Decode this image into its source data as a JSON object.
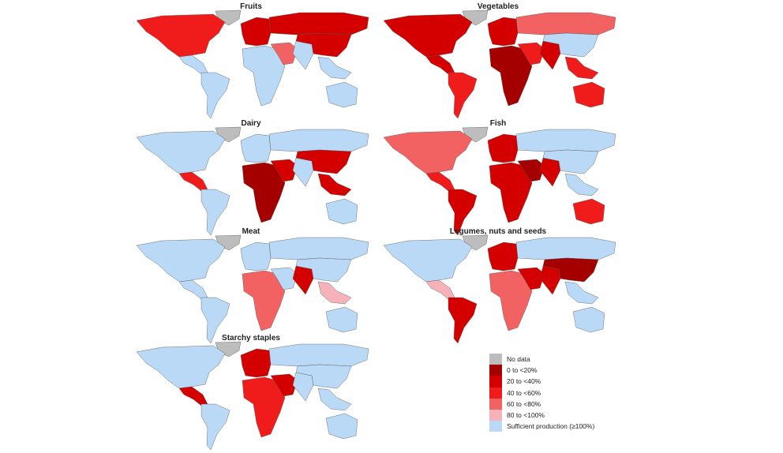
{
  "colors": {
    "no_data": "#bdbdbd",
    "c0": "#a50000",
    "c20": "#d40000",
    "c40": "#f01c1c",
    "c60": "#f26262",
    "c80": "#f6b2b9",
    "sufficient": "#b9d9f6"
  },
  "legend": [
    {
      "key": "no_data",
      "label": "No data"
    },
    {
      "key": "c0",
      "label": "0 to <20%"
    },
    {
      "key": "c20",
      "label": "20 to <40%"
    },
    {
      "key": "c40",
      "label": "40 to <60%"
    },
    {
      "key": "c60",
      "label": "60 to <80%"
    },
    {
      "key": "c80",
      "label": "80 to <100%"
    },
    {
      "key": "sufficient",
      "label": "Sufficient production (≥100%)"
    }
  ],
  "panels": [
    {
      "title": "Fruits",
      "regions": {
        "greenland": "no_data",
        "north_america": "c40",
        "central_america": "sufficient",
        "south_america": "sufficient",
        "europe": "c20",
        "russia": "c20",
        "africa": "sufficient",
        "middle_east": "c60",
        "south_asia": "sufficient",
        "east_asia": "c20",
        "southeast_asia": "sufficient",
        "australia": "sufficient"
      }
    },
    {
      "title": "Vegetables",
      "regions": {
        "greenland": "no_data",
        "north_america": "c20",
        "central_america": "c20",
        "south_america": "c40",
        "europe": "c20",
        "russia": "c60",
        "africa": "c0",
        "middle_east": "c40",
        "south_asia": "c20",
        "east_asia": "sufficient",
        "southeast_asia": "c40",
        "australia": "c40"
      }
    },
    {
      "title": "Dairy",
      "regions": {
        "greenland": "no_data",
        "north_america": "sufficient",
        "central_america": "c40",
        "south_america": "sufficient",
        "europe": "sufficient",
        "russia": "sufficient",
        "africa": "c0",
        "middle_east": "c20",
        "south_asia": "sufficient",
        "east_asia": "c20",
        "southeast_asia": "c20",
        "australia": "sufficient"
      }
    },
    {
      "title": "Fish",
      "regions": {
        "greenland": "no_data",
        "north_america": "c60",
        "central_america": "c40",
        "south_america": "c20",
        "europe": "c20",
        "russia": "sufficient",
        "africa": "c20",
        "middle_east": "c0",
        "south_asia": "c20",
        "east_asia": "sufficient",
        "southeast_asia": "sufficient",
        "australia": "c40"
      }
    },
    {
      "title": "Meat",
      "regions": {
        "greenland": "no_data",
        "north_america": "sufficient",
        "central_america": "sufficient",
        "south_america": "sufficient",
        "europe": "sufficient",
        "russia": "sufficient",
        "africa": "c60",
        "middle_east": "sufficient",
        "south_asia": "c20",
        "east_asia": "sufficient",
        "southeast_asia": "c80",
        "australia": "sufficient"
      }
    },
    {
      "title": "Legumes, nuts and seeds",
      "regions": {
        "greenland": "no_data",
        "north_america": "sufficient",
        "central_america": "c80",
        "south_america": "c20",
        "europe": "c20",
        "russia": "sufficient",
        "africa": "c60",
        "middle_east": "c20",
        "south_asia": "c20",
        "east_asia": "c0",
        "southeast_asia": "sufficient",
        "australia": "sufficient"
      }
    },
    {
      "title": "Starchy staples",
      "regions": {
        "greenland": "no_data",
        "north_america": "sufficient",
        "central_america": "c20",
        "south_america": "sufficient",
        "europe": "c20",
        "russia": "sufficient",
        "africa": "c40",
        "middle_east": "c20",
        "south_asia": "sufficient",
        "east_asia": "sufficient",
        "southeast_asia": "sufficient",
        "australia": "sufficient"
      }
    }
  ]
}
